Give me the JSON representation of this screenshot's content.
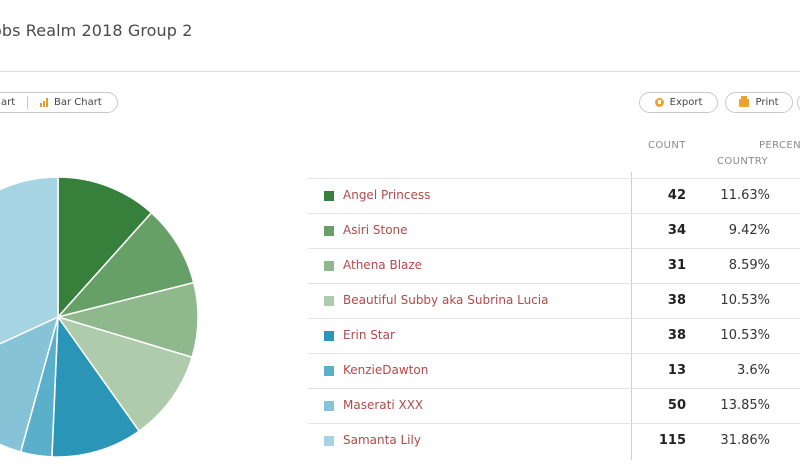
{
  "header": {
    "title": "obs Realm 2018 Group 2"
  },
  "toolbar": {
    "pie_label": "art",
    "bar_label": "Bar Chart",
    "export_label": "Export",
    "print_label": "Print"
  },
  "table": {
    "col_count": "COUNT",
    "col_percent": "PERCEN",
    "col_country": "COUNTRY",
    "rows": [
      {
        "name": "Angel Princess",
        "count": "42",
        "percent": "11.63%",
        "color": "#37803b"
      },
      {
        "name": "Asiri Stone",
        "count": "34",
        "percent": "9.42%",
        "color": "#67a066"
      },
      {
        "name": "Athena Blaze",
        "count": "31",
        "percent": "8.59%",
        "color": "#8fb98c"
      },
      {
        "name": "Beautiful Subby aka Subrina Lucia",
        "count": "38",
        "percent": "10.53%",
        "color": "#aecbab"
      },
      {
        "name": "Erin Star",
        "count": "38",
        "percent": "10.53%",
        "color": "#2b95b8"
      },
      {
        "name": "KenzieDawton",
        "count": "13",
        "percent": "3.6%",
        "color": "#5aafca"
      },
      {
        "name": "Maserati XXX",
        "count": "50",
        "percent": "13.85%",
        "color": "#86c3d7"
      },
      {
        "name": "Samanta Lily",
        "count": "115",
        "percent": "31.86%",
        "color": "#a7d4e2"
      }
    ]
  },
  "chart_data": {
    "type": "pie",
    "categories": [
      "Angel Princess",
      "Asiri Stone",
      "Athena Blaze",
      "Beautiful Subby aka Subrina Lucia",
      "Erin Star",
      "KenzieDawton",
      "Maserati XXX",
      "Samanta Lily"
    ],
    "values": [
      42,
      34,
      31,
      38,
      38,
      13,
      50,
      115
    ],
    "colors": [
      "#37803b",
      "#67a066",
      "#8fb98c",
      "#aecbab",
      "#2b95b8",
      "#5aafca",
      "#86c3d7",
      "#a7d4e2"
    ]
  }
}
